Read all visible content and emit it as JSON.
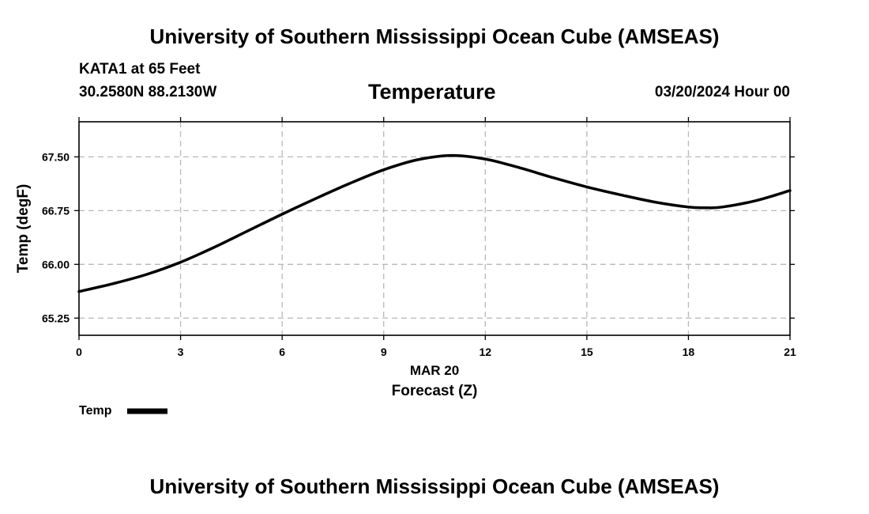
{
  "header": {
    "title": "University of Southern Mississippi Ocean Cube (AMSEAS)",
    "station": "KATA1 at 65 Feet",
    "coords": "30.2580N  88.2130W",
    "variable": "Temperature",
    "datetime": "03/20/2024 Hour 00"
  },
  "footer": {
    "title": "University of Southern Mississippi Ocean Cube (AMSEAS)"
  },
  "chart_data": {
    "type": "line",
    "title": "Temperature",
    "xlabel": "Forecast (Z)",
    "xsublabel": "MAR 20",
    "ylabel": "Temp (degF)",
    "xlim": [
      0,
      21
    ],
    "ylim": [
      65.01,
      67.99
    ],
    "xticks": [
      0,
      3,
      6,
      9,
      12,
      15,
      18,
      21
    ],
    "yticks": [
      65.25,
      66.0,
      66.75,
      67.5
    ],
    "ytick_labels": [
      "65.25",
      "66.00",
      "66.75",
      "67.50"
    ],
    "grid": true,
    "legend_position": "bottom-left",
    "series": [
      {
        "name": "Temp",
        "color": "#000000",
        "x": [
          0,
          1,
          2,
          3,
          4,
          5,
          6,
          7,
          8,
          9,
          10,
          11,
          12,
          13,
          14,
          15,
          16,
          17,
          18,
          18.5,
          19,
          20,
          21
        ],
        "values": [
          65.62,
          65.73,
          65.86,
          66.03,
          66.24,
          66.47,
          66.7,
          66.92,
          67.13,
          67.32,
          67.46,
          67.52,
          67.47,
          67.35,
          67.21,
          67.08,
          66.97,
          66.87,
          66.8,
          66.79,
          66.8,
          66.89,
          67.03
        ]
      }
    ]
  }
}
